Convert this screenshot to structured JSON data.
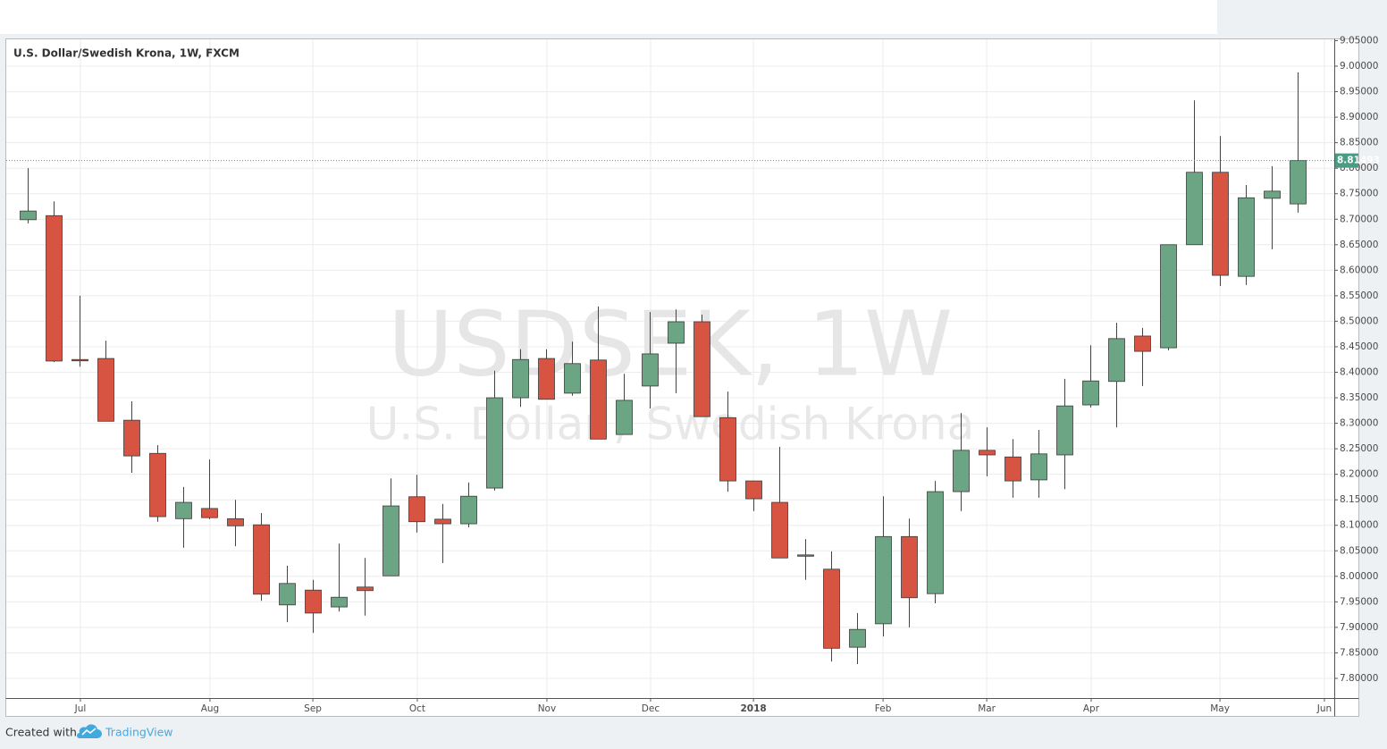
{
  "chart_data": {
    "type": "candlestick",
    "title": "U.S. Dollar/Swedish Krona, 1W, FXCM",
    "watermark": "USDSEK, 1W",
    "watermark_subtitle": "U.S. Dollar / Swedish Krona",
    "categories": [
      null,
      null,
      null,
      null,
      null,
      null,
      null,
      null,
      null,
      null,
      null,
      null,
      null,
      null,
      null,
      null,
      null,
      null,
      null,
      null,
      null,
      null,
      null,
      null,
      null,
      null,
      null,
      null,
      null,
      null,
      null,
      null,
      null,
      null,
      null,
      null,
      null,
      null,
      null,
      null,
      null,
      null,
      null,
      null,
      null,
      null,
      null,
      null,
      null,
      null
    ],
    "open": [
      8.699,
      8.707,
      8.425,
      8.427,
      8.306,
      8.241,
      8.113,
      8.133,
      8.113,
      8.101,
      7.944,
      7.973,
      7.94,
      7.979,
      8.001,
      8.156,
      8.112,
      8.103,
      8.173,
      8.35,
      8.427,
      8.359,
      8.424,
      8.278,
      8.373,
      8.457,
      8.499,
      8.311,
      8.187,
      8.145,
      8.042,
      8.014,
      7.861,
      7.907,
      8.078,
      7.966,
      8.166,
      8.247,
      8.234,
      8.189,
      8.238,
      8.336,
      8.382,
      8.471,
      8.448,
      8.65,
      8.792,
      8.588,
      8.741,
      8.73
    ],
    "high": [
      8.8,
      8.735,
      8.55,
      8.462,
      8.343,
      8.257,
      8.175,
      8.229,
      8.15,
      8.124,
      8.021,
      7.993,
      8.064,
      8.036,
      8.192,
      8.199,
      8.142,
      8.184,
      8.403,
      8.445,
      8.445,
      8.46,
      8.529,
      8.397,
      8.518,
      8.523,
      8.513,
      8.362,
      8.187,
      8.254,
      8.073,
      8.049,
      7.928,
      8.157,
      8.113,
      8.187,
      8.32,
      8.292,
      8.269,
      8.287,
      8.387,
      8.453,
      8.497,
      8.487,
      8.65,
      8.933,
      8.863,
      8.767,
      8.804,
      8.988
    ],
    "low": [
      8.692,
      8.42,
      8.411,
      8.304,
      8.203,
      8.107,
      8.056,
      8.112,
      8.059,
      7.952,
      7.91,
      7.889,
      7.931,
      7.923,
      8.001,
      8.086,
      8.026,
      8.096,
      8.168,
      8.332,
      8.347,
      8.354,
      8.269,
      8.278,
      8.329,
      8.359,
      8.313,
      8.166,
      8.128,
      8.036,
      7.993,
      7.833,
      7.828,
      7.882,
      7.9,
      7.947,
      8.128,
      8.196,
      8.154,
      8.154,
      8.171,
      8.331,
      8.292,
      8.373,
      8.443,
      8.65,
      8.569,
      8.571,
      8.641,
      8.713
    ],
    "close": [
      8.716,
      8.422,
      8.424,
      8.304,
      8.236,
      8.117,
      8.145,
      8.115,
      8.099,
      7.965,
      7.986,
      7.928,
      7.959,
      7.972,
      8.138,
      8.107,
      8.103,
      8.157,
      8.35,
      8.425,
      8.347,
      8.417,
      8.269,
      8.345,
      8.436,
      8.499,
      8.313,
      8.187,
      8.152,
      8.036,
      8.041,
      7.859,
      7.896,
      8.078,
      7.958,
      8.166,
      8.247,
      8.238,
      8.187,
      8.24,
      8.334,
      8.383,
      8.466,
      8.441,
      8.65,
      8.792,
      8.59,
      8.742,
      8.755,
      8.81493
    ],
    "up_color": "#6ba583",
    "down_color": "#d75442",
    "last_price": 8.81493,
    "last_price_color": "#4a9c85",
    "xlim": [
      -0.83,
      50.41
    ],
    "xticks": [
      {
        "value": 2.03,
        "label": "Jul"
      },
      {
        "value": 7.03,
        "label": "Aug"
      },
      {
        "value": 11.0,
        "label": "Sep"
      },
      {
        "value": 15.03,
        "label": "Oct"
      },
      {
        "value": 20.03,
        "label": "Nov"
      },
      {
        "value": 24.03,
        "label": "Dec"
      },
      {
        "value": 28.0,
        "label": "2018"
      },
      {
        "value": 33.0,
        "label": "Feb"
      },
      {
        "value": 37.0,
        "label": "Mar"
      },
      {
        "value": 41.03,
        "label": "Apr"
      },
      {
        "value": 46.0,
        "label": "May"
      },
      {
        "value": 50.03,
        "label": "Jun"
      }
    ],
    "ylim": [
      7.7614,
      9.0526
    ],
    "yticks": [
      {
        "value": 9.05,
        "label": "9.05000"
      },
      {
        "value": 9.0,
        "label": "9.00000"
      },
      {
        "value": 8.95,
        "label": "8.95000"
      },
      {
        "value": 8.9,
        "label": "8.90000"
      },
      {
        "value": 8.85,
        "label": "8.85000"
      },
      {
        "value": 8.8,
        "label": "8.80000"
      },
      {
        "value": 8.75,
        "label": "8.75000"
      },
      {
        "value": 8.7,
        "label": "8.70000"
      },
      {
        "value": 8.65,
        "label": "8.65000"
      },
      {
        "value": 8.6,
        "label": "8.60000"
      },
      {
        "value": 8.55,
        "label": "8.55000"
      },
      {
        "value": 8.5,
        "label": "8.50000"
      },
      {
        "value": 8.45,
        "label": "8.45000"
      },
      {
        "value": 8.4,
        "label": "8.40000"
      },
      {
        "value": 8.35,
        "label": "8.35000"
      },
      {
        "value": 8.3,
        "label": "8.30000"
      },
      {
        "value": 8.25,
        "label": "8.25000"
      },
      {
        "value": 8.2,
        "label": "8.20000"
      },
      {
        "value": 8.15,
        "label": "8.15000"
      },
      {
        "value": 8.1,
        "label": "8.10000"
      },
      {
        "value": 8.05,
        "label": "8.05000"
      },
      {
        "value": 8.0,
        "label": "8.00000"
      },
      {
        "value": 7.95,
        "label": "7.95000"
      },
      {
        "value": 7.9,
        "label": "7.90000"
      },
      {
        "value": 7.85,
        "label": "7.85000"
      },
      {
        "value": 7.8,
        "label": "7.80000"
      }
    ],
    "grid": true,
    "footer": {
      "prefix": "Created with",
      "brand": "TradingView"
    }
  }
}
